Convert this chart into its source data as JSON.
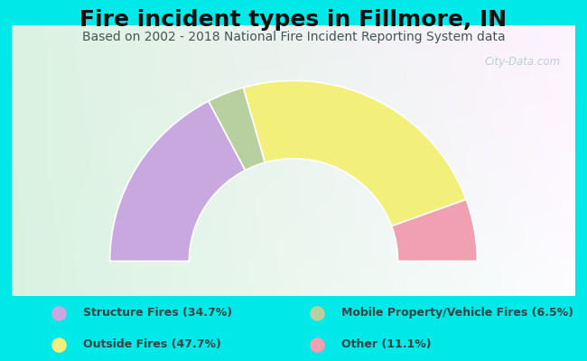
{
  "title": "Fire incident types in Fillmore, IN",
  "subtitle": "Based on 2002 - 2018 National Fire Incident Reporting System data",
  "values": [
    34.7,
    6.5,
    47.7,
    11.1
  ],
  "colors": [
    "#c9a8e0",
    "#b8cfa0",
    "#f2f07a",
    "#f0a0b0"
  ],
  "legend_colors": [
    "#c9a8e0",
    "#f2f07a",
    "#b8cfa0",
    "#f0a0b0"
  ],
  "legend_labels": [
    "Structure Fires (34.7%)",
    "Outside Fires (47.7%)",
    "Mobile Property/Vehicle Fires (6.5%)",
    "Other (11.1%)"
  ],
  "bg_cyan": "#00e8e8",
  "bg_chart_tl": "#c8e8d0",
  "bg_chart_br": "#f0fff8",
  "watermark": "City-Data.com",
  "title_fontsize": 18,
  "subtitle_fontsize": 10,
  "outer_r": 0.88,
  "inner_r": 0.5
}
